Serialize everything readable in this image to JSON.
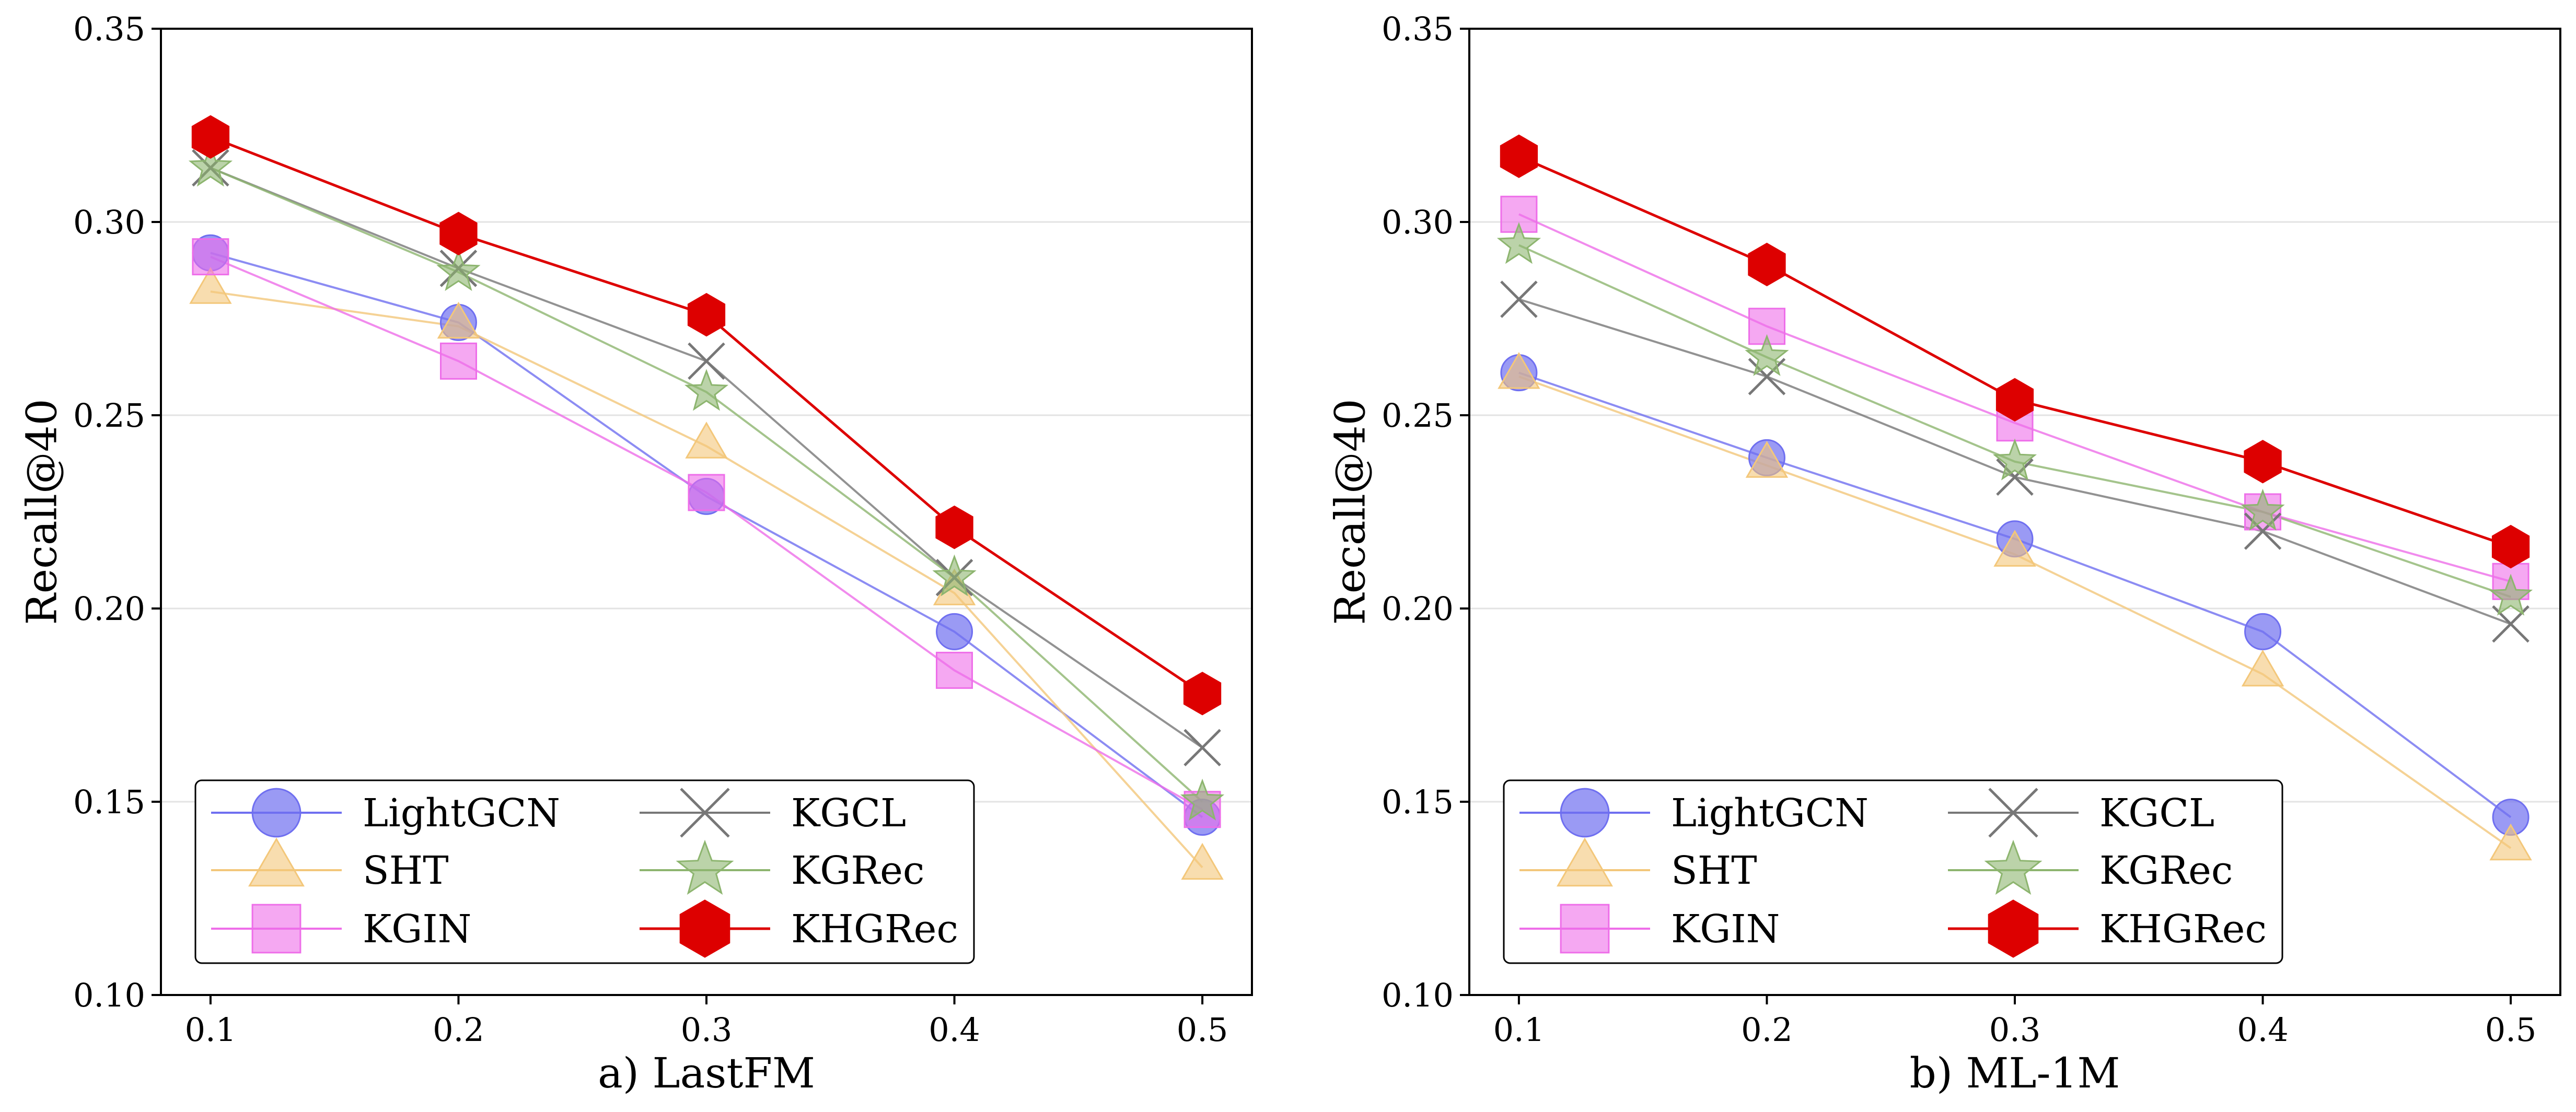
{
  "chart_data": [
    {
      "type": "line",
      "title": "",
      "xlabel": "a) LastFM",
      "ylabel": "Recall@40",
      "x": [
        0.1,
        0.2,
        0.3,
        0.4,
        0.5
      ],
      "x_tick_labels": [
        "0.1",
        "0.2",
        "0.3",
        "0.4",
        "0.5"
      ],
      "xlim": [
        0.08,
        0.52
      ],
      "ylim": [
        0.1,
        0.35
      ],
      "y_ticks": [
        0.1,
        0.15,
        0.2,
        0.25,
        0.3,
        0.35
      ],
      "y_tick_labels": [
        "0.10",
        "0.15",
        "0.20",
        "0.25",
        "0.30",
        "0.35"
      ],
      "grid": "horizontal",
      "legend_position": "lower-left",
      "series": [
        {
          "name": "LightGCN",
          "values": [
            0.292,
            0.274,
            0.229,
            0.194,
            0.146
          ]
        },
        {
          "name": "SHT",
          "values": [
            0.282,
            0.273,
            0.242,
            0.204,
            0.133
          ]
        },
        {
          "name": "KGIN",
          "values": [
            0.291,
            0.264,
            0.23,
            0.184,
            0.148
          ]
        },
        {
          "name": "KGCL",
          "values": [
            0.314,
            0.288,
            0.264,
            0.208,
            0.164
          ]
        },
        {
          "name": "KGRec",
          "values": [
            0.314,
            0.287,
            0.256,
            0.208,
            0.15
          ]
        },
        {
          "name": "KHGRec",
          "values": [
            0.322,
            0.297,
            0.276,
            0.221,
            0.178
          ]
        }
      ]
    },
    {
      "type": "line",
      "title": "",
      "xlabel": "b) ML-1M",
      "ylabel": "Recall@40",
      "x": [
        0.1,
        0.2,
        0.3,
        0.4,
        0.5
      ],
      "x_tick_labels": [
        "0.1",
        "0.2",
        "0.3",
        "0.4",
        "0.5"
      ],
      "xlim": [
        0.08,
        0.52
      ],
      "ylim": [
        0.1,
        0.35
      ],
      "y_ticks": [
        0.1,
        0.15,
        0.2,
        0.25,
        0.3,
        0.35
      ],
      "y_tick_labels": [
        "0.10",
        "0.15",
        "0.20",
        "0.25",
        "0.30",
        "0.35"
      ],
      "grid": "horizontal",
      "legend_position": "lower-left",
      "series": [
        {
          "name": "LightGCN",
          "values": [
            0.261,
            0.239,
            0.218,
            0.194,
            0.146
          ]
        },
        {
          "name": "SHT",
          "values": [
            0.26,
            0.237,
            0.214,
            0.183,
            0.138
          ]
        },
        {
          "name": "KGIN",
          "values": [
            0.302,
            0.273,
            0.248,
            0.225,
            0.207
          ]
        },
        {
          "name": "KGCL",
          "values": [
            0.28,
            0.26,
            0.234,
            0.22,
            0.196
          ]
        },
        {
          "name": "KGRec",
          "values": [
            0.294,
            0.265,
            0.238,
            0.225,
            0.203
          ]
        },
        {
          "name": "KHGRec",
          "values": [
            0.317,
            0.289,
            0.254,
            0.238,
            0.216
          ]
        }
      ]
    }
  ],
  "styles": {
    "LightGCN": {
      "color": "#6f6ff0",
      "marker": "circle"
    },
    "SHT": {
      "color": "#f3c77a",
      "marker": "triangle"
    },
    "KGIN": {
      "color": "#ee6ee9",
      "marker": "square"
    },
    "KGCL": {
      "color": "#777777",
      "marker": "x"
    },
    "KGRec": {
      "color": "#8db56f",
      "marker": "star"
    },
    "KHGRec": {
      "color": "#dd0000",
      "marker": "hexagon"
    }
  }
}
